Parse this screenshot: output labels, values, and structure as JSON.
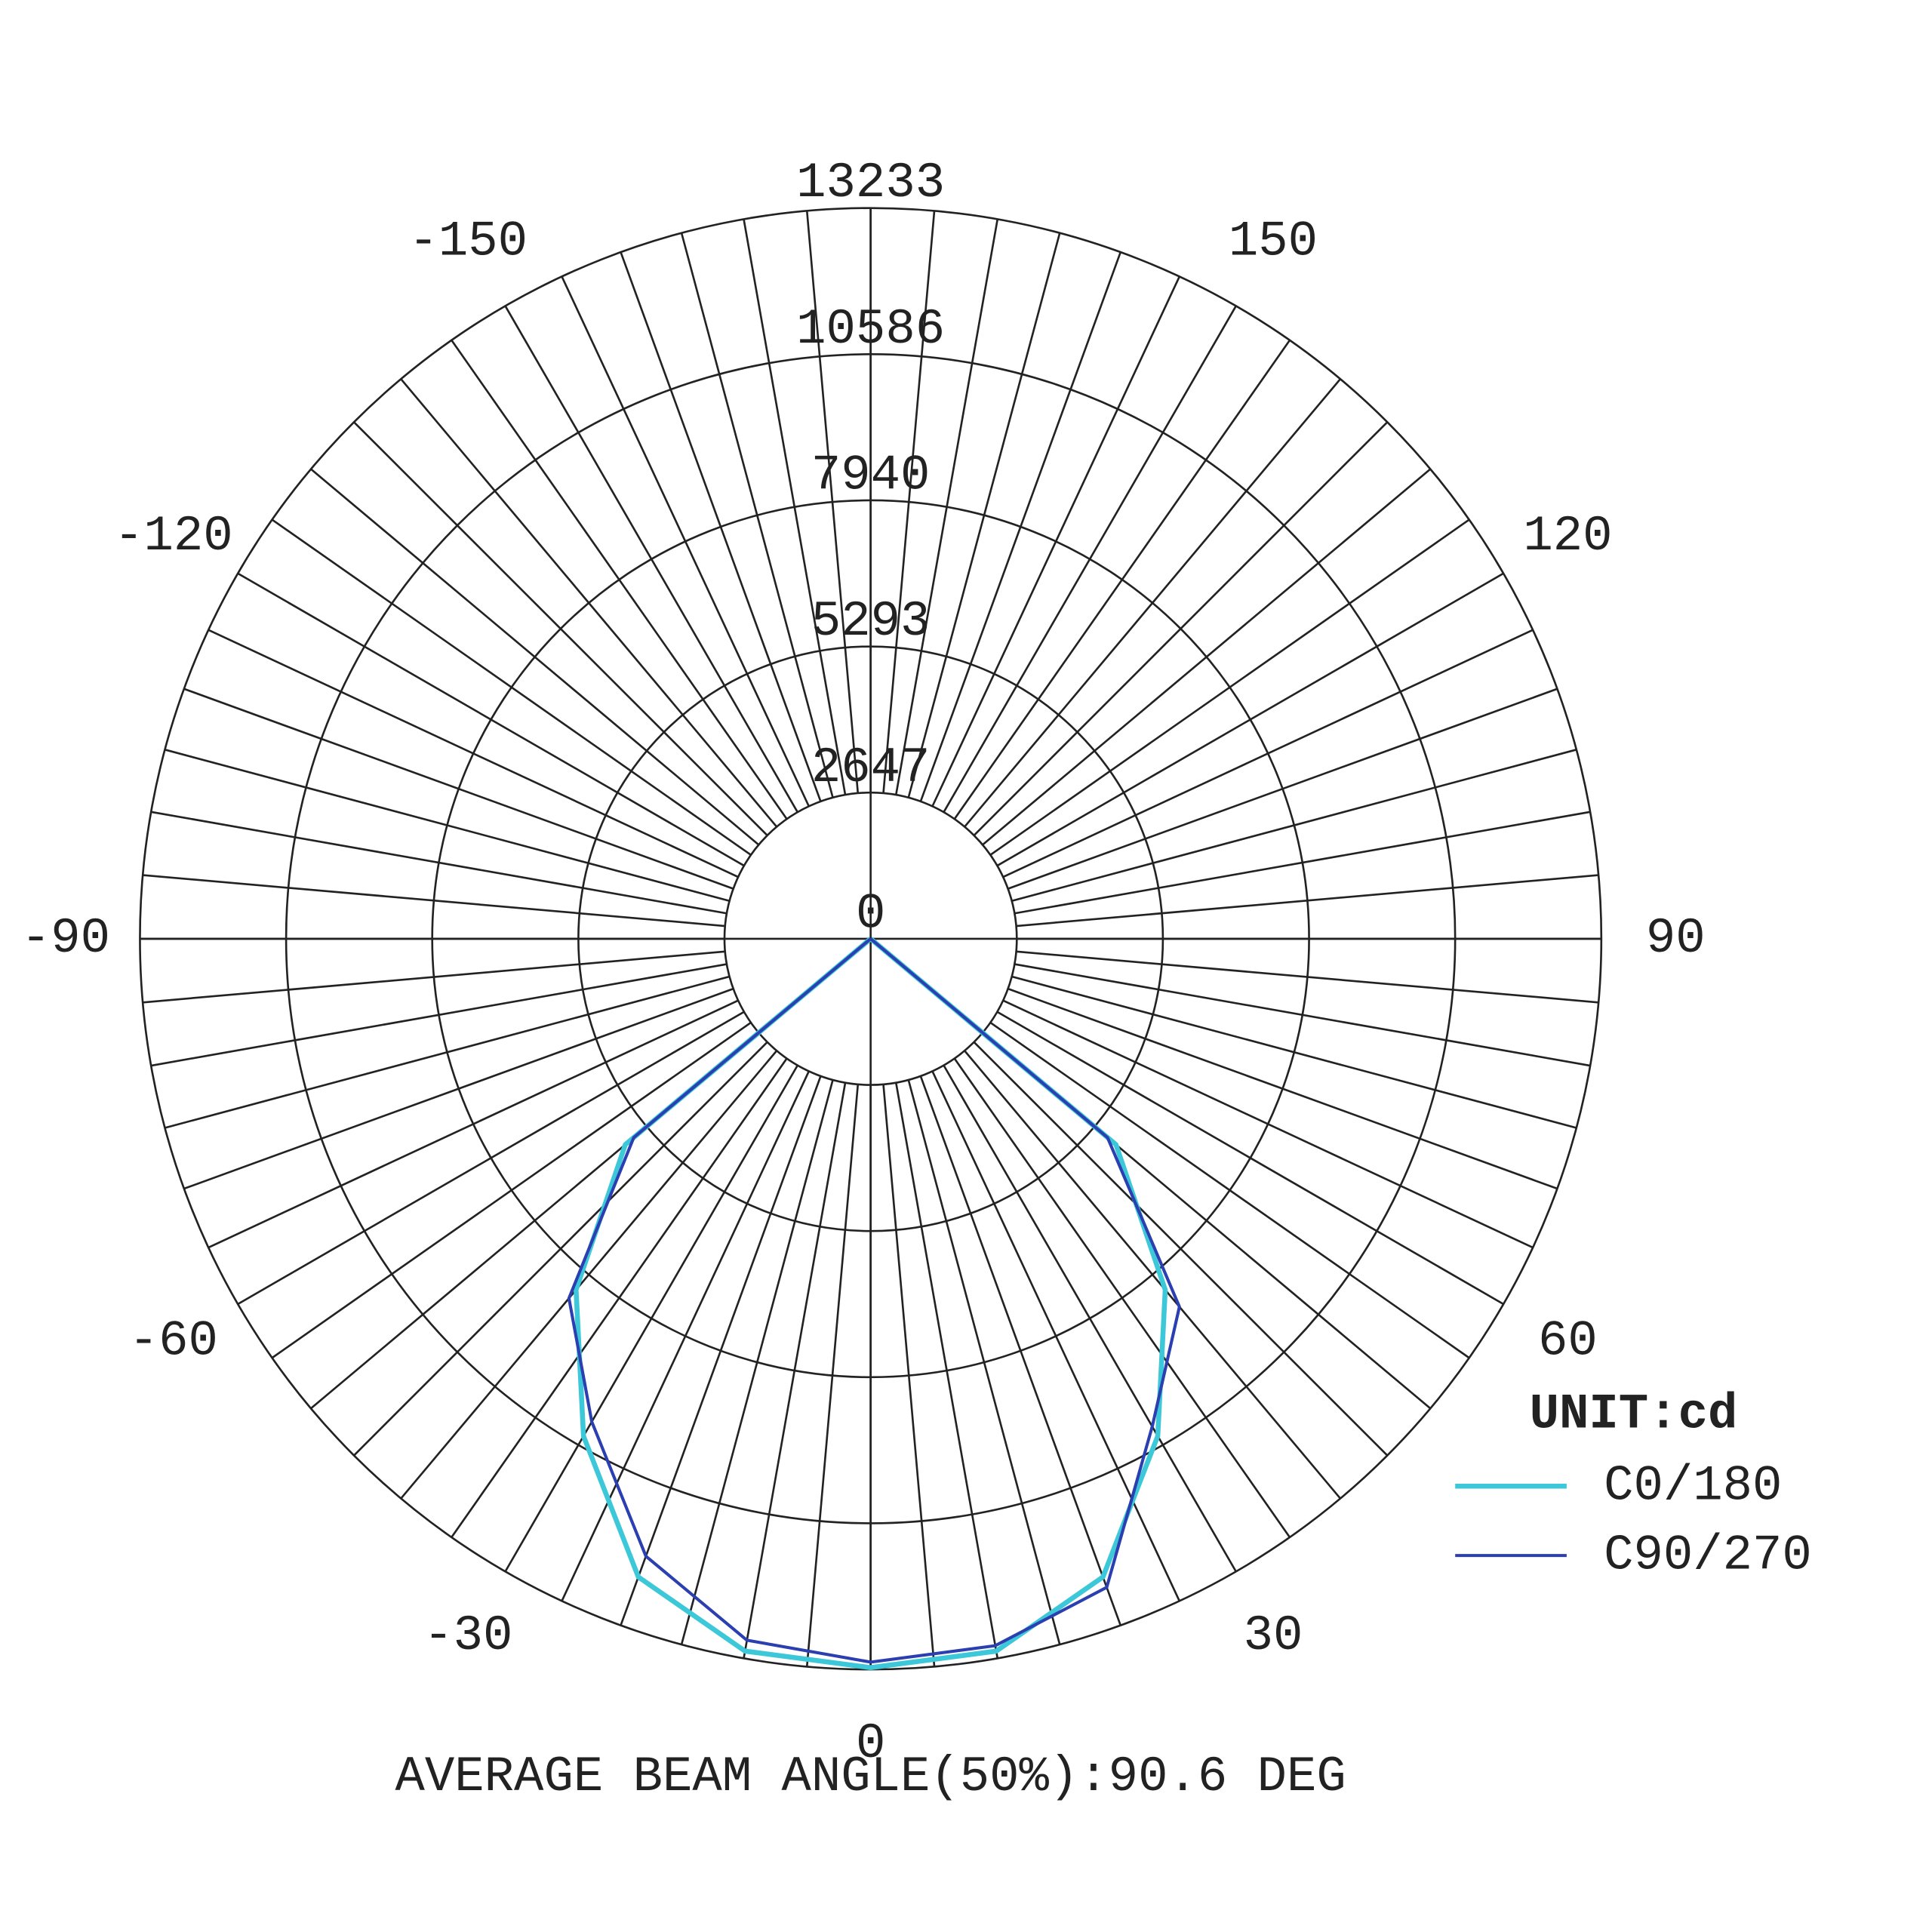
{
  "chart_data": {
    "type": "polar",
    "unit_label": "UNIT:cd",
    "footnote": "AVERAGE BEAM ANGLE(50%):90.6 DEG",
    "angles": [
      -90,
      -80,
      -70,
      -60,
      -50,
      -40,
      -30,
      -20,
      -10,
      0,
      10,
      20,
      30,
      40,
      50,
      60,
      70,
      80,
      90
    ],
    "series": [
      {
        "name": "C0/180",
        "color": "#3cc8d8",
        "values": [
          0,
          0,
          0,
          0,
          5800,
          8300,
          10400,
          12300,
          13100,
          13200,
          13100,
          12300,
          10400,
          8300,
          5800,
          0,
          0,
          0,
          0
        ]
      },
      {
        "name": "C90/270",
        "color": "#2b3fb0",
        "values": [
          0,
          0,
          0,
          0,
          5600,
          8500,
          10100,
          11900,
          12900,
          13100,
          13000,
          12500,
          10200,
          8700,
          5600,
          0,
          0,
          0,
          0
        ]
      }
    ],
    "rlim": [
      0,
      13233
    ],
    "rticks": [
      0,
      2647,
      5293,
      7940,
      10586,
      13233
    ],
    "angle_ticks": [
      -150,
      -120,
      -90,
      -60,
      -30,
      0,
      30,
      60,
      90,
      120,
      150
    ],
    "grid": true,
    "legend": "lower right"
  }
}
